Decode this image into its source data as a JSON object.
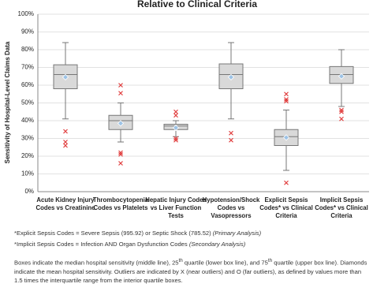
{
  "chart_data": {
    "type": "box",
    "title": "Relative to Clinical Criteria",
    "y_label": "Sensitivity of Hospital-Level Claims Data",
    "ylim": [
      0,
      100
    ],
    "yticks": [
      {
        "value": 0,
        "label": "0%"
      },
      {
        "value": 10,
        "label": "10%"
      },
      {
        "value": 20,
        "label": "20%"
      },
      {
        "value": 30,
        "label": "30%"
      },
      {
        "value": 40,
        "label": "40%"
      },
      {
        "value": 50,
        "label": "50%"
      },
      {
        "value": 60,
        "label": "60%"
      },
      {
        "value": 70,
        "label": "70%"
      },
      {
        "value": 80,
        "label": "80%"
      },
      {
        "value": 90,
        "label": "90%"
      },
      {
        "value": 100,
        "label": "100%"
      }
    ],
    "grid": true,
    "box_color": "#d9d9d9",
    "mean_color": "#9dc3e6",
    "outlier_color": "#e03c3c",
    "categories": [
      [
        "Acute Kidney Injury",
        "Codes vs Creatinine"
      ],
      [
        "Thrombocytopenia",
        "Codes vs Platelets"
      ],
      [
        "Hepatic Injury Codes",
        "vs Liver Function",
        "Tests"
      ],
      [
        "Hypotension/Shock",
        "Codes vs",
        "Vasopressors"
      ],
      [
        "Explicit Sepsis",
        "Codes* vs Clinical",
        "Criteria"
      ],
      [
        "Implicit Sepsis",
        "Codes* vs Clinical",
        "Criteria"
      ]
    ],
    "boxes": [
      {
        "whisker_low": 41,
        "q1": 58,
        "median": 66,
        "q3": 71.5,
        "whisker_high": 84,
        "mean": 64.5,
        "outliers": [
          34,
          28,
          26
        ]
      },
      {
        "whisker_low": 28,
        "q1": 35,
        "median": 40,
        "q3": 43,
        "whisker_high": 50,
        "mean": 38.5,
        "outliers": [
          60,
          55.5,
          22,
          21,
          16
        ]
      },
      {
        "whisker_low": 31,
        "q1": 35,
        "median": 37,
        "q3": 38,
        "whisker_high": 40,
        "mean": 36,
        "outliers": [
          45,
          43,
          30,
          29
        ]
      },
      {
        "whisker_low": 41,
        "q1": 58,
        "median": 66,
        "q3": 72,
        "whisker_high": 84,
        "mean": 64.5,
        "outliers": [
          33,
          29
        ]
      },
      {
        "whisker_low": 12,
        "q1": 26,
        "median": 31,
        "q3": 35,
        "whisker_high": 46,
        "mean": 30.5,
        "outliers": [
          55,
          52,
          51,
          5
        ]
      },
      {
        "whisker_low": 48,
        "q1": 61,
        "median": 66,
        "q3": 70.5,
        "whisker_high": 80,
        "mean": 65,
        "outliers": [
          46,
          45,
          41
        ]
      }
    ]
  },
  "notes": {
    "explicit": [
      "*Explicit Sepsis Codes = Severe Sepsis (995.92) or Septic Shock (785.52) ",
      "(Primary Analysis)"
    ],
    "implicit": [
      "*Implicit Sepsis Codes = Infection AND Organ Dysfunction Codes ",
      "(Secondary Analysis)"
    ],
    "legend": [
      "Boxes indicate the median hospital sensitivity (middle line), 25",
      "th",
      " quartile (lower box line), and 75",
      "th",
      " quartile (upper box line). Diamonds indicate the mean hospital sensitivity.  Outliers are indicated by X (near outliers) and O (far outliers), as defined by values more than 1.5 times the interquartile range from the interior quartile boxes."
    ]
  }
}
